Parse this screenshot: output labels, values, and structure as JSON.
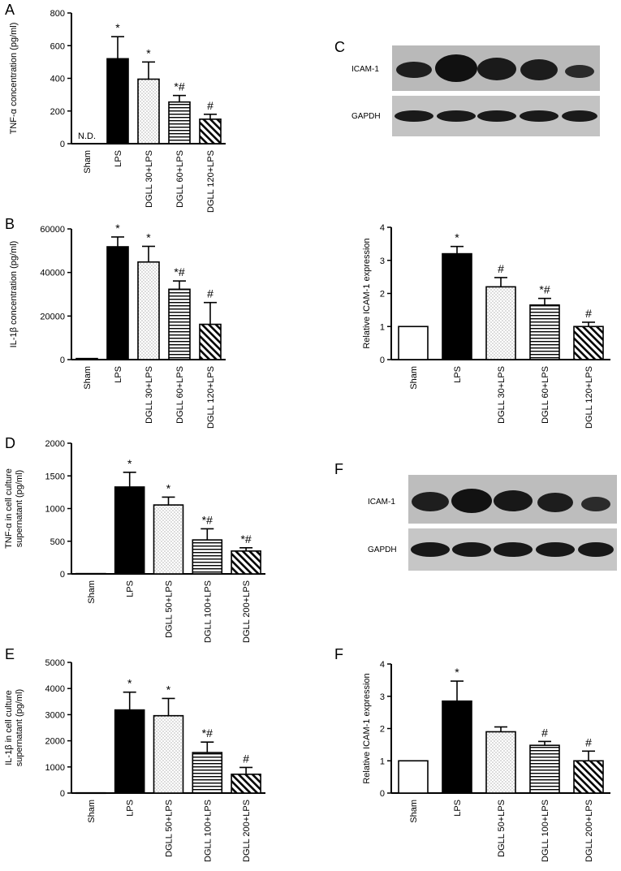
{
  "chart_data": [
    {
      "panel": "A",
      "type": "bar",
      "ylabel": "TNF-α concentration (pg/ml)",
      "ylim": [
        0,
        800
      ],
      "yticks": [
        0,
        200,
        400,
        600,
        800
      ],
      "categories": [
        "Sham",
        "LPS",
        "DGLL 30+LPS",
        "DGLL 60+LPS",
        "DGLL 120+LPS"
      ],
      "values": [
        0,
        520,
        395,
        255,
        150
      ],
      "errors": [
        0,
        135,
        105,
        40,
        30
      ],
      "annotations": [
        "N.D.",
        "*",
        "*",
        "*#",
        "#"
      ],
      "fills": [
        "none",
        "solid",
        "dots",
        "hlines",
        "diag"
      ]
    },
    {
      "panel": "B",
      "type": "bar",
      "ylabel": "IL-1β concentration (pg/ml)",
      "ylim": [
        0,
        60000
      ],
      "yticks": [
        0,
        20000,
        40000,
        60000
      ],
      "categories": [
        "Sham",
        "LPS",
        "DGLL 30+LPS",
        "DGLL 60+LPS",
        "DGLL 120+LPS"
      ],
      "values": [
        500,
        51800,
        44800,
        32300,
        16200
      ],
      "errors": [
        0,
        4500,
        7200,
        3800,
        10000
      ],
      "annotations": [
        "",
        "*",
        "*",
        "*#",
        "#"
      ],
      "fills": [
        "none",
        "solid",
        "dots",
        "hlines",
        "diag"
      ]
    },
    {
      "panel": "C",
      "type": "bar",
      "ylabel": "Relative ICAM-1 expression",
      "ylim": [
        0,
        4
      ],
      "yticks": [
        0,
        1,
        2,
        3,
        4
      ],
      "categories": [
        "Sham",
        "LPS",
        "DGLL 30+LPS",
        "DGLL 60+LPS",
        "DGLL 120+LPS"
      ],
      "values": [
        1.0,
        3.2,
        2.2,
        1.65,
        1.0
      ],
      "errors": [
        0,
        0.22,
        0.28,
        0.2,
        0.13
      ],
      "annotations": [
        "",
        "*",
        "#",
        "*#",
        "#"
      ],
      "fills": [
        "white",
        "solid",
        "dots",
        "hlines",
        "diag"
      ]
    },
    {
      "panel": "D",
      "type": "bar",
      "ylabel": [
        "TNF-α in cell culture",
        "supernatant (pg/ml)"
      ],
      "ylim": [
        0,
        2000
      ],
      "yticks": [
        0,
        500,
        1000,
        1500,
        2000
      ],
      "categories": [
        "Sham",
        "LPS",
        "DGLL 50+LPS",
        "DGLL 100+LPS",
        "DGLL 200+LPS"
      ],
      "values": [
        5,
        1330,
        1055,
        520,
        350
      ],
      "errors": [
        0,
        225,
        120,
        170,
        50
      ],
      "annotations": [
        "",
        "*",
        "*",
        "*#",
        "*#"
      ],
      "fills": [
        "none",
        "solid",
        "dots",
        "hlines",
        "diag"
      ]
    },
    {
      "panel": "E",
      "type": "bar",
      "ylabel": [
        "IL-1β in cell culture",
        "supernatant (pg/ml)"
      ],
      "ylim": [
        0,
        5000
      ],
      "yticks": [
        0,
        1000,
        2000,
        3000,
        4000,
        5000
      ],
      "categories": [
        "Sham",
        "LPS",
        "DGLL 50+LPS",
        "DGLL 100+LPS",
        "DGLL 200+LPS"
      ],
      "values": [
        10,
        3180,
        2960,
        1550,
        720
      ],
      "errors": [
        0,
        680,
        660,
        400,
        260
      ],
      "annotations": [
        "",
        "*",
        "*",
        "*#",
        "#"
      ],
      "fills": [
        "none",
        "solid",
        "dots",
        "hlines",
        "diag"
      ]
    },
    {
      "panel": "F",
      "type": "bar",
      "ylabel": "Relative ICAM-1 expression",
      "ylim": [
        0,
        4
      ],
      "yticks": [
        0,
        1,
        2,
        3,
        4
      ],
      "categories": [
        "Sham",
        "LPS",
        "DGLL 50+LPS",
        "DGLL 100+LPS",
        "DGLL 200+LPS"
      ],
      "values": [
        1.0,
        2.85,
        1.9,
        1.48,
        1.0
      ],
      "errors": [
        0,
        0.62,
        0.15,
        0.12,
        0.3
      ],
      "annotations": [
        "",
        "*",
        "",
        "#",
        "#"
      ],
      "fills": [
        "white",
        "solid",
        "dots",
        "hlines",
        "diag"
      ]
    }
  ],
  "blots": [
    {
      "panel": "C",
      "labels": [
        "ICAM-1",
        "GAPDH"
      ]
    },
    {
      "panel": "F",
      "labels": [
        "ICAM-1",
        "GAPDH"
      ]
    }
  ],
  "panel_letters": {
    "A": "A",
    "B": "B",
    "C": "C",
    "D": "D",
    "E": "E",
    "F_top": "F",
    "F_bottom": "F"
  }
}
